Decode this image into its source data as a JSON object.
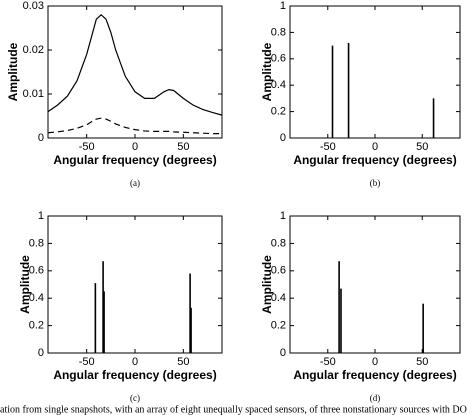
{
  "chart_data": [
    {
      "type": "line",
      "label": "(a)",
      "xlabel": "Angular frequency (degrees)",
      "ylabel": "Amplitude",
      "xlim": [
        -90,
        90
      ],
      "xticks": [
        -50,
        0,
        50
      ],
      "ylim": [
        0,
        0.03
      ],
      "yticks": [
        0,
        0.01,
        0.02,
        0.03
      ],
      "x": [
        -90,
        -80,
        -70,
        -60,
        -50,
        -45,
        -40,
        -35,
        -30,
        -25,
        -20,
        -10,
        0,
        10,
        20,
        30,
        35,
        40,
        50,
        60,
        70,
        80,
        90
      ],
      "series": [
        {
          "style": "solid",
          "color": "#000000",
          "values": [
            0.006,
            0.0075,
            0.0095,
            0.013,
            0.019,
            0.023,
            0.027,
            0.028,
            0.027,
            0.024,
            0.02,
            0.014,
            0.0105,
            0.009,
            0.009,
            0.0105,
            0.011,
            0.0108,
            0.009,
            0.0075,
            0.0065,
            0.0058,
            0.0052
          ]
        },
        {
          "style": "dashed",
          "color": "#000000",
          "values": [
            0.0012,
            0.0014,
            0.0017,
            0.0022,
            0.003,
            0.0037,
            0.0043,
            0.0045,
            0.0043,
            0.0038,
            0.0032,
            0.0024,
            0.0019,
            0.0016,
            0.0015,
            0.0015,
            0.0015,
            0.0014,
            0.0013,
            0.0012,
            0.0011,
            0.001,
            0.001
          ]
        }
      ]
    },
    {
      "type": "stem",
      "label": "(b)",
      "xlabel": "Angular frequency (degrees)",
      "ylabel": "Amplitude",
      "xlim": [
        -90,
        90
      ],
      "xticks": [
        -50,
        0,
        50
      ],
      "ylim": [
        0,
        1
      ],
      "yticks": [
        0,
        0.2,
        0.4,
        0.6,
        0.8,
        1
      ],
      "x": [
        -45,
        -28,
        62
      ],
      "values": [
        0.7,
        0.72,
        0.3
      ],
      "color": "#000000"
    },
    {
      "type": "stem",
      "label": "(c)",
      "xlabel": "Angular frequency (degrees)",
      "ylabel": "Amplitude",
      "xlim": [
        -90,
        90
      ],
      "xticks": [
        -50,
        0,
        50
      ],
      "ylim": [
        0,
        1
      ],
      "yticks": [
        0,
        0.2,
        0.4,
        0.6,
        0.8,
        1
      ],
      "x": [
        -41,
        -33,
        -32,
        57,
        58
      ],
      "values": [
        0.51,
        0.67,
        0.45,
        0.58,
        0.33
      ],
      "color": "#000000"
    },
    {
      "type": "stem",
      "label": "(d)",
      "xlabel": "Angular frequency (degrees)",
      "ylabel": "Amplitude",
      "xlim": [
        -90,
        90
      ],
      "xticks": [
        -50,
        0,
        50
      ],
      "ylim": [
        0,
        1
      ],
      "yticks": [
        0,
        0.2,
        0.4,
        0.6,
        0.8,
        1
      ],
      "x": [
        -38,
        -36,
        51
      ],
      "values": [
        0.67,
        0.47,
        0.36
      ],
      "color": "#000000"
    }
  ],
  "caption": "ation from single snapshots, with an array of eight unequally spaced sensors, of three nonstationary sources with DO"
}
